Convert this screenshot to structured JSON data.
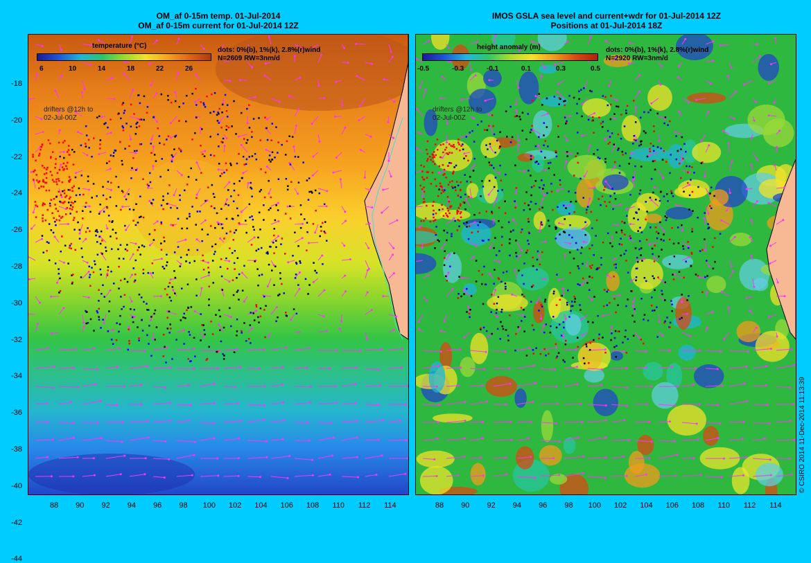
{
  "left_panel": {
    "title_line1": "OM_af 0-15m temp. 01-Jul-2014",
    "title_line2": "OM_af 0-15m current for 01-Jul-2014 12Z",
    "legend_title": "temperature (°C)",
    "colorbar_ticks": [
      "6",
      "10",
      "14",
      "18",
      "22",
      "26"
    ],
    "info_line1": "dots: 0%(b), 1%(k), 2.8%(r)wind",
    "info_line2": "N=2609 RW=3nm/d",
    "drifters_line1": "drifters @12h to",
    "drifters_line2": "02-Jul-00Z",
    "y_ticks": [
      "-18",
      "-20",
      "-22",
      "-24",
      "-26",
      "-28",
      "-30",
      "-32",
      "-34",
      "-36",
      "-38",
      "-40",
      "-42",
      "-44"
    ],
    "x_ticks": [
      "88",
      "90",
      "92",
      "94",
      "96",
      "98",
      "100",
      "102",
      "104",
      "106",
      "108",
      "110",
      "112",
      "114"
    ]
  },
  "right_panel": {
    "title_line1": "IMOS GSLA sea level and current+wdr for 01-Jul-2014 12Z",
    "title_line2": "Positions at 01-Jul-2014 18Z",
    "legend_title": "height anomaly (m)",
    "colorbar_ticks": [
      "-0.5",
      "-0.3",
      "-0.1",
      "0.1",
      "0.3",
      "0.5"
    ],
    "info_line1": "dots: 0%(b), 1%(k), 2.8%(r)wind",
    "info_line2": "N=2920 RW=3nm/d",
    "drifters_line1": "drifters @12h to",
    "drifters_line2": "02-Jul-00Z",
    "x_ticks": [
      "88",
      "90",
      "92",
      "94",
      "96",
      "98",
      "100",
      "102",
      "104",
      "106",
      "108",
      "110",
      "112",
      "114"
    ]
  },
  "copyright": "© CSIRO 2014   11-Dec-2014 11:13:39",
  "colors": {
    "background": "#00ccff",
    "land": "#f7b894",
    "coast": "#40e0d0",
    "arrow": "#ff33ff",
    "dot_blue": "#0000ff",
    "dot_black": "#000000",
    "dot_red": "#ff0000"
  }
}
